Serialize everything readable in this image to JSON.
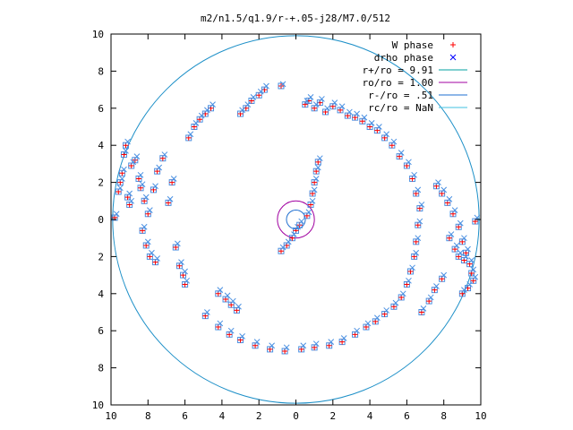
{
  "chart_data": {
    "type": "scatter",
    "title": "m2/n1.5/q1.9/r-+.05-j28/M7.0/512",
    "xlabel": "",
    "ylabel": "",
    "xlim": [
      -10,
      10
    ],
    "ylim": [
      -10,
      10
    ],
    "x_tick_labels": [
      "10",
      "8",
      "6",
      "4",
      "2",
      "0",
      "2",
      "4",
      "6",
      "8",
      "10"
    ],
    "y_tick_labels": [
      "10",
      "8",
      "6",
      "4",
      "2",
      "0",
      "2",
      "4",
      "6",
      "8",
      "10"
    ],
    "grid": false,
    "legend_position": "top-right",
    "legend": [
      {
        "label": "W phase",
        "marker": "plus",
        "color": "#ff0000"
      },
      {
        "label": "drho phase",
        "marker": "cross",
        "color": "#0000ff"
      },
      {
        "label": "r+/ro = 9.91",
        "marker": "line",
        "color": "#00a0a0"
      },
      {
        "label": "ro/ro = 1.00",
        "marker": "line",
        "color": "#a000a0"
      },
      {
        "label": "r-/ro = .51",
        "marker": "line",
        "color": "#1e6fd0"
      },
      {
        "label": "rc/ro = NaN",
        "marker": "line",
        "color": "#40c0e0"
      }
    ],
    "circles": [
      {
        "name": "r+/ro = 9.91",
        "r": 9.91,
        "color": "#1e90c8"
      },
      {
        "name": "ro/ro = 1.00",
        "r": 1.0,
        "color": "#a000a0"
      },
      {
        "name": "r-/ro = .51",
        "r": 0.51,
        "color": "#1e6fd0"
      }
    ],
    "scatter_color": "#4a90e2",
    "series": [
      {
        "name": "W phase",
        "points": [
          [
            -9.8,
            0.1
          ],
          [
            -9.6,
            1.5
          ],
          [
            -9.4,
            2.5
          ],
          [
            -9.3,
            3.5
          ],
          [
            -9.2,
            4.0
          ],
          [
            -9.5,
            2.0
          ],
          [
            -9.1,
            1.2
          ],
          [
            -9.0,
            0.8
          ],
          [
            -8.9,
            2.9
          ],
          [
            -8.7,
            3.2
          ],
          [
            -8.5,
            2.2
          ],
          [
            -8.4,
            1.7
          ],
          [
            -8.2,
            1.0
          ],
          [
            -8.0,
            0.3
          ],
          [
            -8.3,
            -0.6
          ],
          [
            -8.1,
            -1.4
          ],
          [
            -7.9,
            -2.0
          ],
          [
            -7.6,
            -2.3
          ],
          [
            -7.7,
            1.6
          ],
          [
            -7.5,
            2.6
          ],
          [
            -7.2,
            3.3
          ],
          [
            -6.9,
            0.9
          ],
          [
            -6.7,
            2.0
          ],
          [
            -6.5,
            -1.5
          ],
          [
            -6.3,
            -2.5
          ],
          [
            -6.1,
            -3.0
          ],
          [
            -6.0,
            -3.5
          ],
          [
            -5.8,
            4.4
          ],
          [
            -5.5,
            5.0
          ],
          [
            -5.2,
            5.4
          ],
          [
            -4.9,
            5.7
          ],
          [
            -4.6,
            6.0
          ],
          [
            -4.2,
            -4.0
          ],
          [
            -3.8,
            -4.3
          ],
          [
            -3.5,
            -4.6
          ],
          [
            -3.2,
            -4.9
          ],
          [
            -3.0,
            5.7
          ],
          [
            -2.7,
            6.0
          ],
          [
            -2.4,
            6.4
          ],
          [
            -2.0,
            6.7
          ],
          [
            -1.7,
            7.0
          ],
          [
            -0.8,
            7.2
          ],
          [
            0.5,
            6.2
          ],
          [
            0.7,
            6.4
          ],
          [
            1.0,
            6.0
          ],
          [
            1.3,
            6.3
          ],
          [
            1.6,
            5.8
          ],
          [
            2.0,
            6.1
          ],
          [
            2.4,
            5.9
          ],
          [
            2.8,
            5.6
          ],
          [
            3.2,
            5.5
          ],
          [
            3.6,
            5.3
          ],
          [
            4.0,
            5.0
          ],
          [
            4.4,
            4.8
          ],
          [
            4.8,
            4.4
          ],
          [
            5.2,
            4.0
          ],
          [
            5.6,
            3.4
          ],
          [
            6.0,
            2.9
          ],
          [
            6.3,
            2.2
          ],
          [
            6.5,
            1.4
          ],
          [
            6.7,
            0.6
          ],
          [
            6.6,
            -0.3
          ],
          [
            6.5,
            -1.2
          ],
          [
            6.4,
            -2.0
          ],
          [
            6.2,
            -2.8
          ],
          [
            6.0,
            -3.5
          ],
          [
            5.7,
            -4.2
          ],
          [
            5.3,
            -4.7
          ],
          [
            4.8,
            -5.1
          ],
          [
            4.3,
            -5.5
          ],
          [
            3.8,
            -5.8
          ],
          [
            3.2,
            -6.2
          ],
          [
            2.5,
            -6.6
          ],
          [
            1.8,
            -6.8
          ],
          [
            1.0,
            -6.9
          ],
          [
            0.3,
            -7.0
          ],
          [
            -0.6,
            -7.1
          ],
          [
            -1.4,
            -7.0
          ],
          [
            -2.2,
            -6.8
          ],
          [
            -3.0,
            -6.5
          ],
          [
            -3.6,
            -6.2
          ],
          [
            -4.2,
            -5.8
          ],
          [
            -4.9,
            -5.2
          ],
          [
            7.6,
            1.8
          ],
          [
            7.9,
            1.4
          ],
          [
            8.2,
            0.9
          ],
          [
            8.5,
            0.3
          ],
          [
            8.8,
            -0.4
          ],
          [
            9.0,
            -1.2
          ],
          [
            9.2,
            -1.8
          ],
          [
            9.4,
            -2.4
          ],
          [
            9.5,
            -2.9
          ],
          [
            9.6,
            -3.3
          ],
          [
            9.3,
            -3.7
          ],
          [
            9.0,
            -4.0
          ],
          [
            8.6,
            -1.6
          ],
          [
            8.8,
            -2.0
          ],
          [
            9.1,
            -2.2
          ],
          [
            8.3,
            -1.0
          ],
          [
            9.7,
            -0.1
          ],
          [
            7.9,
            -3.2
          ],
          [
            7.5,
            -3.8
          ],
          [
            7.2,
            -4.4
          ],
          [
            6.8,
            -5.0
          ],
          [
            -0.8,
            -1.7
          ],
          [
            -0.5,
            -1.4
          ],
          [
            -0.2,
            -1.0
          ],
          [
            0.0,
            -0.6
          ],
          [
            0.2,
            -0.3
          ],
          [
            0.6,
            0.2
          ],
          [
            0.8,
            0.8
          ],
          [
            0.9,
            1.4
          ],
          [
            1.0,
            2.0
          ],
          [
            1.1,
            2.6
          ],
          [
            1.2,
            3.1
          ]
        ]
      },
      {
        "name": "drho phase",
        "points": [
          [
            -9.7,
            0.3
          ],
          [
            -9.5,
            1.7
          ],
          [
            -9.3,
            2.7
          ],
          [
            -9.2,
            3.7
          ],
          [
            -9.1,
            4.2
          ],
          [
            -9.4,
            2.2
          ],
          [
            -9.0,
            1.4
          ],
          [
            -8.9,
            1.0
          ],
          [
            -8.8,
            3.1
          ],
          [
            -8.6,
            3.4
          ],
          [
            -8.4,
            2.4
          ],
          [
            -8.3,
            1.9
          ],
          [
            -8.1,
            1.2
          ],
          [
            -7.9,
            0.5
          ],
          [
            -8.2,
            -0.4
          ],
          [
            -8.0,
            -1.2
          ],
          [
            -7.8,
            -1.8
          ],
          [
            -7.5,
            -2.1
          ],
          [
            -7.6,
            1.8
          ],
          [
            -7.4,
            2.8
          ],
          [
            -7.1,
            3.5
          ],
          [
            -6.8,
            1.1
          ],
          [
            -6.6,
            2.2
          ],
          [
            -6.4,
            -1.3
          ],
          [
            -6.2,
            -2.3
          ],
          [
            -6.0,
            -2.8
          ],
          [
            -5.9,
            -3.3
          ],
          [
            -5.7,
            4.6
          ],
          [
            -5.4,
            5.2
          ],
          [
            -5.1,
            5.6
          ],
          [
            -4.8,
            5.9
          ],
          [
            -4.5,
            6.2
          ],
          [
            -4.1,
            -3.8
          ],
          [
            -3.7,
            -4.1
          ],
          [
            -3.4,
            -4.4
          ],
          [
            -3.1,
            -4.7
          ],
          [
            -2.9,
            5.9
          ],
          [
            -2.6,
            6.2
          ],
          [
            -2.3,
            6.6
          ],
          [
            -1.9,
            6.9
          ],
          [
            -1.6,
            7.2
          ],
          [
            -0.7,
            7.3
          ],
          [
            0.6,
            6.4
          ],
          [
            0.8,
            6.6
          ],
          [
            1.1,
            6.2
          ],
          [
            1.4,
            6.5
          ],
          [
            1.7,
            6.0
          ],
          [
            2.1,
            6.3
          ],
          [
            2.5,
            6.1
          ],
          [
            2.9,
            5.8
          ],
          [
            3.3,
            5.7
          ],
          [
            3.7,
            5.5
          ],
          [
            4.1,
            5.2
          ],
          [
            4.5,
            5.0
          ],
          [
            4.9,
            4.6
          ],
          [
            5.3,
            4.2
          ],
          [
            5.7,
            3.6
          ],
          [
            6.1,
            3.1
          ],
          [
            6.4,
            2.4
          ],
          [
            6.6,
            1.6
          ],
          [
            6.8,
            0.8
          ],
          [
            6.7,
            -0.1
          ],
          [
            6.6,
            -1.0
          ],
          [
            6.5,
            -1.8
          ],
          [
            6.3,
            -2.6
          ],
          [
            6.1,
            -3.3
          ],
          [
            5.8,
            -4.0
          ],
          [
            5.4,
            -4.5
          ],
          [
            4.9,
            -4.9
          ],
          [
            4.4,
            -5.3
          ],
          [
            3.9,
            -5.6
          ],
          [
            3.3,
            -6.0
          ],
          [
            2.6,
            -6.4
          ],
          [
            1.9,
            -6.6
          ],
          [
            1.1,
            -6.7
          ],
          [
            0.4,
            -6.8
          ],
          [
            -0.5,
            -6.9
          ],
          [
            -1.3,
            -6.8
          ],
          [
            -2.1,
            -6.6
          ],
          [
            -2.9,
            -6.3
          ],
          [
            -3.5,
            -6.0
          ],
          [
            -4.1,
            -5.6
          ],
          [
            -4.8,
            -5.0
          ],
          [
            7.7,
            2.0
          ],
          [
            8.0,
            1.6
          ],
          [
            8.3,
            1.1
          ],
          [
            8.6,
            0.5
          ],
          [
            8.9,
            -0.2
          ],
          [
            9.1,
            -1.0
          ],
          [
            9.3,
            -1.6
          ],
          [
            9.5,
            -2.2
          ],
          [
            9.6,
            -2.7
          ],
          [
            9.7,
            -3.1
          ],
          [
            9.4,
            -3.5
          ],
          [
            9.1,
            -3.8
          ],
          [
            8.7,
            -1.4
          ],
          [
            8.9,
            -1.8
          ],
          [
            9.2,
            -2.0
          ],
          [
            8.4,
            -0.8
          ],
          [
            9.8,
            0.1
          ],
          [
            8.0,
            -3.0
          ],
          [
            7.6,
            -3.6
          ],
          [
            7.3,
            -4.2
          ],
          [
            6.9,
            -4.8
          ],
          [
            -0.7,
            -1.5
          ],
          [
            -0.4,
            -1.2
          ],
          [
            -0.1,
            -0.8
          ],
          [
            0.1,
            -0.4
          ],
          [
            0.3,
            -0.1
          ],
          [
            0.7,
            0.4
          ],
          [
            0.9,
            1.0
          ],
          [
            1.0,
            1.6
          ],
          [
            1.1,
            2.2
          ],
          [
            1.2,
            2.8
          ],
          [
            1.3,
            3.3
          ]
        ]
      }
    ]
  }
}
